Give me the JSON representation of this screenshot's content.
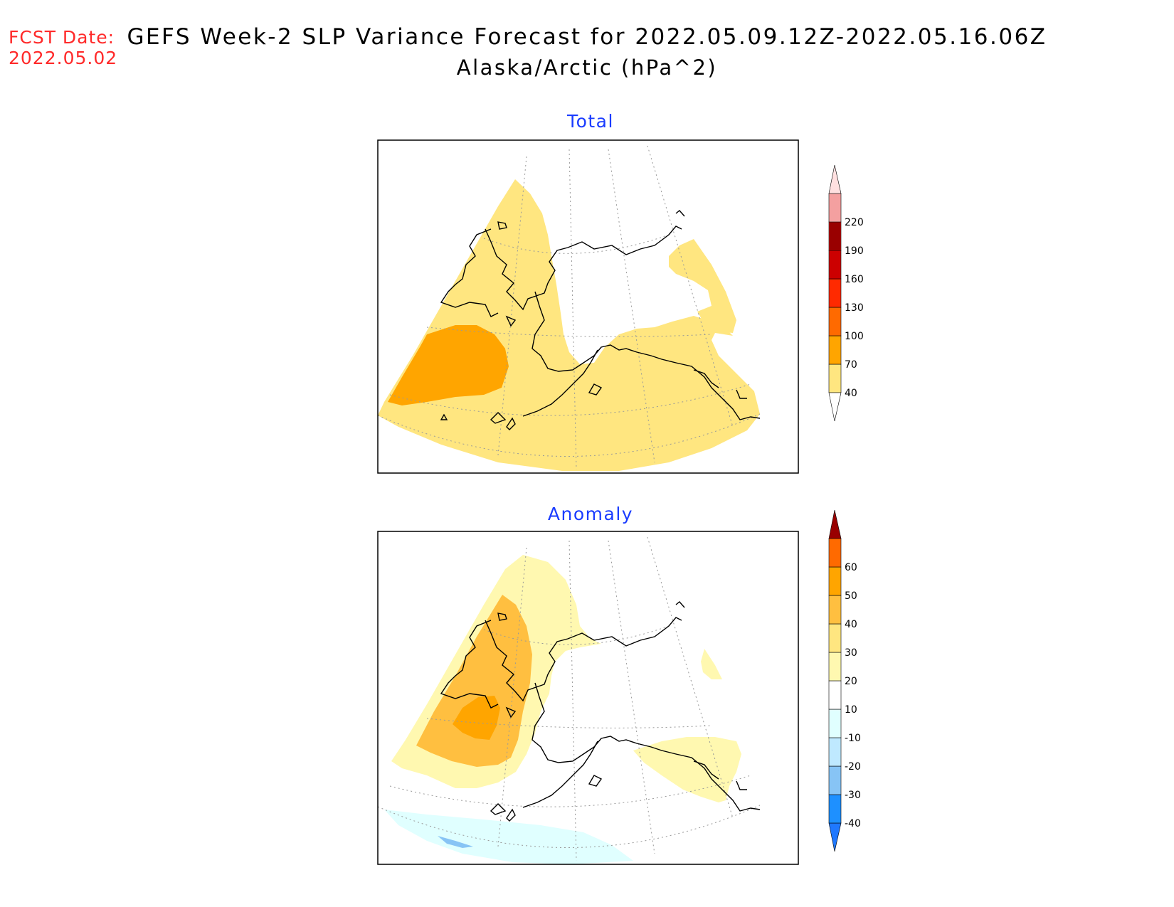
{
  "header": {
    "fcst_label": "FCST Date:",
    "fcst_date": "2022.05.02",
    "title": "GEFS Week-2 SLP Variance Forecast for 2022.05.09.12Z-2022.05.16.06Z",
    "subtitle": "Alaska/Arctic (hPa^2)"
  },
  "panels": [
    {
      "title": "Total",
      "colorbar": {
        "labels": [
          "40",
          "70",
          "100",
          "130",
          "160",
          "190",
          "220"
        ],
        "colors": [
          "#ffe680",
          "#ffa500",
          "#ff6a00",
          "#ff2a00",
          "#cc0000",
          "#990000",
          "#f4a0a0",
          "#ffe0e0"
        ]
      }
    },
    {
      "title": "Anomaly",
      "colorbar": {
        "labels": [
          "-40",
          "-30",
          "-20",
          "-10",
          "10",
          "20",
          "30",
          "40",
          "50",
          "60"
        ],
        "colors": [
          "#1f78ff",
          "#1e90ff",
          "#87c4f5",
          "#bfe9ff",
          "#e0ffff",
          "#ffffff",
          "#fff8b0",
          "#ffe680",
          "#ffbf40",
          "#ffa500",
          "#ff6a00",
          "#ff2a00",
          "#cc0000",
          "#990000"
        ]
      }
    }
  ]
}
